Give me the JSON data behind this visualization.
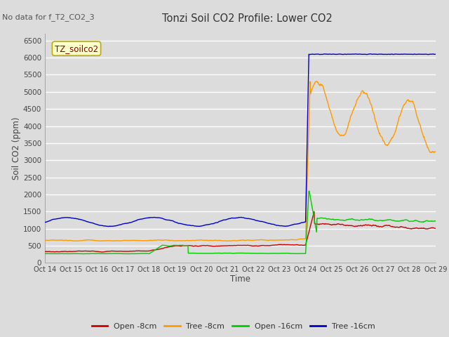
{
  "title": "Tonzi Soil CO2 Profile: Lower CO2",
  "no_data_text": "No data for f_T2_CO2_3",
  "legend_box_text": "TZ_soilco2",
  "xlabel": "Time",
  "ylabel": "Soil CO2 (ppm)",
  "ylim": [
    0,
    6700
  ],
  "yticks": [
    0,
    500,
    1000,
    1500,
    2000,
    2500,
    3000,
    3500,
    4000,
    4500,
    5000,
    5500,
    6000,
    6500
  ],
  "xtick_labels": [
    "Oct 14",
    "Oct 15",
    "Oct 16",
    "Oct 17",
    "Oct 18",
    "Oct 19",
    "Oct 20",
    "Oct 21",
    "Oct 22",
    "Oct 23",
    "Oct 24",
    "Oct 25",
    "Oct 26",
    "Oct 27",
    "Oct 28",
    "Oct 29"
  ],
  "bg_color": "#dcdcdc",
  "plot_bg_color": "#dcdcdc",
  "grid_color": "#ffffff",
  "series": {
    "open_8cm": {
      "color": "#cc0000",
      "label": "Open -8cm"
    },
    "tree_8cm": {
      "color": "#ff9900",
      "label": "Tree -8cm"
    },
    "open_16cm": {
      "color": "#00cc00",
      "label": "Open -16cm"
    },
    "tree_16cm": {
      "color": "#0000cc",
      "label": "Tree -16cm"
    }
  },
  "n_points": 960,
  "spike_day": 10.0,
  "total_days": 15
}
